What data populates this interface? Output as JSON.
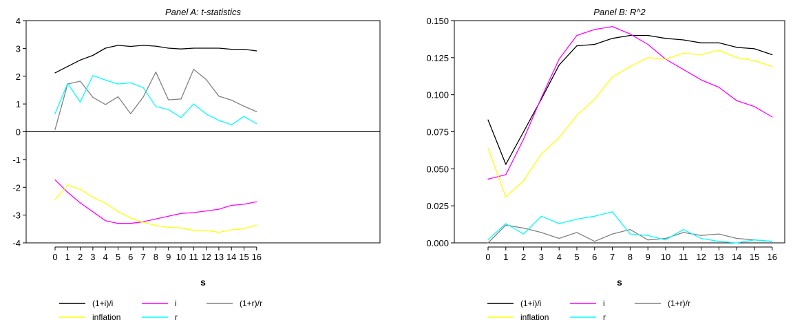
{
  "chart_data": [
    {
      "type": "line",
      "title": "Panel A: t-statistics",
      "xlabel": "s",
      "ylabel": "",
      "x": [
        0,
        1,
        2,
        3,
        4,
        5,
        6,
        7,
        8,
        9,
        10,
        11,
        12,
        13,
        14,
        15,
        16
      ],
      "ylim": [
        -4,
        4
      ],
      "yticks": [
        "-4",
        "-3",
        "-2",
        "-1",
        "0",
        "1",
        "2",
        "3",
        "4"
      ],
      "zero_line": true,
      "series": [
        {
          "name": "(1+i)/i",
          "color": "#000000",
          "values": [
            2.12,
            2.35,
            2.58,
            2.75,
            3.01,
            3.11,
            3.07,
            3.11,
            3.08,
            3.01,
            2.98,
            3.01,
            3.01,
            3.01,
            2.97,
            2.97,
            2.91
          ]
        },
        {
          "name": "i",
          "color": "#ff00ff",
          "values": [
            -1.73,
            -2.18,
            -2.56,
            -2.88,
            -3.2,
            -3.3,
            -3.3,
            -3.24,
            -3.14,
            -3.04,
            -2.94,
            -2.91,
            -2.85,
            -2.79,
            -2.65,
            -2.61,
            -2.52
          ]
        },
        {
          "name": "(1+r)/r",
          "color": "#808080",
          "values": [
            0.08,
            1.72,
            1.82,
            1.24,
            0.98,
            1.26,
            0.65,
            1.25,
            2.15,
            1.15,
            1.18,
            2.25,
            1.88,
            1.28,
            1.14,
            0.92,
            0.72
          ]
        },
        {
          "name": "inflation",
          "color": "#ffff00",
          "values": [
            -2.45,
            -1.92,
            -2.07,
            -2.36,
            -2.57,
            -2.87,
            -3.1,
            -3.26,
            -3.37,
            -3.44,
            -3.46,
            -3.55,
            -3.55,
            -3.62,
            -3.53,
            -3.49,
            -3.36
          ]
        },
        {
          "name": "r",
          "color": "#00ffff",
          "values": [
            0.65,
            1.74,
            1.07,
            2.02,
            1.86,
            1.72,
            1.76,
            1.59,
            0.91,
            0.8,
            0.51,
            1.0,
            0.64,
            0.41,
            0.25,
            0.55,
            0.29
          ]
        }
      ],
      "legend": [
        [
          "(1+i)/i",
          "i",
          "(1+r)/r"
        ],
        [
          "inflation",
          "r"
        ]
      ]
    },
    {
      "type": "line",
      "title": "Panel B: R^2",
      "xlabel": "s",
      "ylabel": "",
      "x": [
        0,
        1,
        2,
        3,
        4,
        5,
        6,
        7,
        8,
        9,
        10,
        11,
        12,
        13,
        14,
        15,
        16
      ],
      "ylim": [
        0,
        0.15
      ],
      "yticks": [
        "0.000",
        "0.025",
        "0.050",
        "0.075",
        "0.100",
        "0.125",
        "0.150"
      ],
      "zero_line": false,
      "series": [
        {
          "name": "(1+i)/i",
          "color": "#000000",
          "values": [
            0.083,
            0.053,
            0.075,
            0.097,
            0.12,
            0.133,
            0.134,
            0.138,
            0.14,
            0.14,
            0.138,
            0.137,
            0.135,
            0.135,
            0.132,
            0.131,
            0.127
          ]
        },
        {
          "name": "i",
          "color": "#ff00ff",
          "values": [
            0.043,
            0.046,
            0.07,
            0.098,
            0.124,
            0.14,
            0.144,
            0.146,
            0.141,
            0.134,
            0.124,
            0.117,
            0.11,
            0.105,
            0.096,
            0.092,
            0.085
          ]
        },
        {
          "name": "(1+r)/r",
          "color": "#808080",
          "values": [
            0.0,
            0.012,
            0.01,
            0.007,
            0.003,
            0.007,
            0.001,
            0.006,
            0.009,
            0.002,
            0.003,
            0.007,
            0.005,
            0.006,
            0.003,
            0.002,
            0.001
          ]
        },
        {
          "name": "inflation",
          "color": "#ffff00",
          "values": [
            0.064,
            0.031,
            0.042,
            0.06,
            0.071,
            0.086,
            0.097,
            0.112,
            0.119,
            0.125,
            0.124,
            0.128,
            0.127,
            0.13,
            0.125,
            0.123,
            0.119
          ]
        },
        {
          "name": "r",
          "color": "#00ffff",
          "values": [
            0.002,
            0.013,
            0.006,
            0.018,
            0.013,
            0.016,
            0.018,
            0.021,
            0.006,
            0.005,
            0.002,
            0.009,
            0.003,
            0.001,
            0.0,
            0.002,
            0.001
          ]
        }
      ],
      "legend": [
        [
          "(1+i)/i",
          "i",
          "(1+r)/r"
        ],
        [
          "inflation",
          "r"
        ]
      ]
    }
  ]
}
